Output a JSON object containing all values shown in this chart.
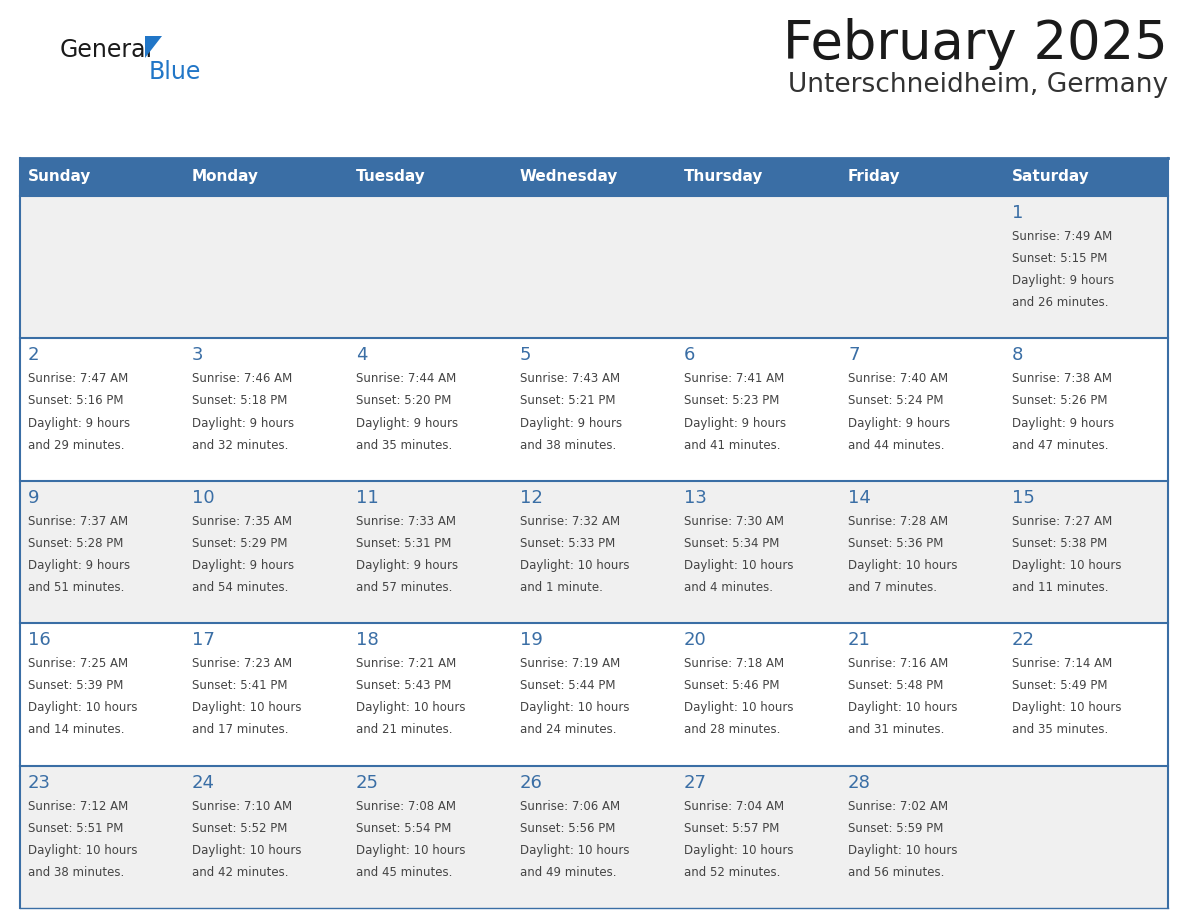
{
  "title": "February 2025",
  "subtitle": "Unterschneidheim, Germany",
  "header_bg": "#3A6EA5",
  "header_text_color": "#FFFFFF",
  "row_bg_odd": "#F0F0F0",
  "row_bg_even": "#FFFFFF",
  "day_number_color": "#3A6EA5",
  "text_color": "#444444",
  "border_color": "#3A6EA5",
  "days_of_week": [
    "Sunday",
    "Monday",
    "Tuesday",
    "Wednesday",
    "Thursday",
    "Friday",
    "Saturday"
  ],
  "weeks": [
    [
      null,
      null,
      null,
      null,
      null,
      null,
      1
    ],
    [
      2,
      3,
      4,
      5,
      6,
      7,
      8
    ],
    [
      9,
      10,
      11,
      12,
      13,
      14,
      15
    ],
    [
      16,
      17,
      18,
      19,
      20,
      21,
      22
    ],
    [
      23,
      24,
      25,
      26,
      27,
      28,
      null
    ]
  ],
  "cell_data": {
    "1": {
      "sunrise": "7:49 AM",
      "sunset": "5:15 PM",
      "daylight_l1": "Daylight: 9 hours",
      "daylight_l2": "and 26 minutes."
    },
    "2": {
      "sunrise": "7:47 AM",
      "sunset": "5:16 PM",
      "daylight_l1": "Daylight: 9 hours",
      "daylight_l2": "and 29 minutes."
    },
    "3": {
      "sunrise": "7:46 AM",
      "sunset": "5:18 PM",
      "daylight_l1": "Daylight: 9 hours",
      "daylight_l2": "and 32 minutes."
    },
    "4": {
      "sunrise": "7:44 AM",
      "sunset": "5:20 PM",
      "daylight_l1": "Daylight: 9 hours",
      "daylight_l2": "and 35 minutes."
    },
    "5": {
      "sunrise": "7:43 AM",
      "sunset": "5:21 PM",
      "daylight_l1": "Daylight: 9 hours",
      "daylight_l2": "and 38 minutes."
    },
    "6": {
      "sunrise": "7:41 AM",
      "sunset": "5:23 PM",
      "daylight_l1": "Daylight: 9 hours",
      "daylight_l2": "and 41 minutes."
    },
    "7": {
      "sunrise": "7:40 AM",
      "sunset": "5:24 PM",
      "daylight_l1": "Daylight: 9 hours",
      "daylight_l2": "and 44 minutes."
    },
    "8": {
      "sunrise": "7:38 AM",
      "sunset": "5:26 PM",
      "daylight_l1": "Daylight: 9 hours",
      "daylight_l2": "and 47 minutes."
    },
    "9": {
      "sunrise": "7:37 AM",
      "sunset": "5:28 PM",
      "daylight_l1": "Daylight: 9 hours",
      "daylight_l2": "and 51 minutes."
    },
    "10": {
      "sunrise": "7:35 AM",
      "sunset": "5:29 PM",
      "daylight_l1": "Daylight: 9 hours",
      "daylight_l2": "and 54 minutes."
    },
    "11": {
      "sunrise": "7:33 AM",
      "sunset": "5:31 PM",
      "daylight_l1": "Daylight: 9 hours",
      "daylight_l2": "and 57 minutes."
    },
    "12": {
      "sunrise": "7:32 AM",
      "sunset": "5:33 PM",
      "daylight_l1": "Daylight: 10 hours",
      "daylight_l2": "and 1 minute."
    },
    "13": {
      "sunrise": "7:30 AM",
      "sunset": "5:34 PM",
      "daylight_l1": "Daylight: 10 hours",
      "daylight_l2": "and 4 minutes."
    },
    "14": {
      "sunrise": "7:28 AM",
      "sunset": "5:36 PM",
      "daylight_l1": "Daylight: 10 hours",
      "daylight_l2": "and 7 minutes."
    },
    "15": {
      "sunrise": "7:27 AM",
      "sunset": "5:38 PM",
      "daylight_l1": "Daylight: 10 hours",
      "daylight_l2": "and 11 minutes."
    },
    "16": {
      "sunrise": "7:25 AM",
      "sunset": "5:39 PM",
      "daylight_l1": "Daylight: 10 hours",
      "daylight_l2": "and 14 minutes."
    },
    "17": {
      "sunrise": "7:23 AM",
      "sunset": "5:41 PM",
      "daylight_l1": "Daylight: 10 hours",
      "daylight_l2": "and 17 minutes."
    },
    "18": {
      "sunrise": "7:21 AM",
      "sunset": "5:43 PM",
      "daylight_l1": "Daylight: 10 hours",
      "daylight_l2": "and 21 minutes."
    },
    "19": {
      "sunrise": "7:19 AM",
      "sunset": "5:44 PM",
      "daylight_l1": "Daylight: 10 hours",
      "daylight_l2": "and 24 minutes."
    },
    "20": {
      "sunrise": "7:18 AM",
      "sunset": "5:46 PM",
      "daylight_l1": "Daylight: 10 hours",
      "daylight_l2": "and 28 minutes."
    },
    "21": {
      "sunrise": "7:16 AM",
      "sunset": "5:48 PM",
      "daylight_l1": "Daylight: 10 hours",
      "daylight_l2": "and 31 minutes."
    },
    "22": {
      "sunrise": "7:14 AM",
      "sunset": "5:49 PM",
      "daylight_l1": "Daylight: 10 hours",
      "daylight_l2": "and 35 minutes."
    },
    "23": {
      "sunrise": "7:12 AM",
      "sunset": "5:51 PM",
      "daylight_l1": "Daylight: 10 hours",
      "daylight_l2": "and 38 minutes."
    },
    "24": {
      "sunrise": "7:10 AM",
      "sunset": "5:52 PM",
      "daylight_l1": "Daylight: 10 hours",
      "daylight_l2": "and 42 minutes."
    },
    "25": {
      "sunrise": "7:08 AM",
      "sunset": "5:54 PM",
      "daylight_l1": "Daylight: 10 hours",
      "daylight_l2": "and 45 minutes."
    },
    "26": {
      "sunrise": "7:06 AM",
      "sunset": "5:56 PM",
      "daylight_l1": "Daylight: 10 hours",
      "daylight_l2": "and 49 minutes."
    },
    "27": {
      "sunrise": "7:04 AM",
      "sunset": "5:57 PM",
      "daylight_l1": "Daylight: 10 hours",
      "daylight_l2": "and 52 minutes."
    },
    "28": {
      "sunrise": "7:02 AM",
      "sunset": "5:59 PM",
      "daylight_l1": "Daylight: 10 hours",
      "daylight_l2": "and 56 minutes."
    }
  },
  "logo_general_color": "#1a1a1a",
  "logo_blue_color": "#2176C7",
  "logo_triangle_color": "#2176C7"
}
